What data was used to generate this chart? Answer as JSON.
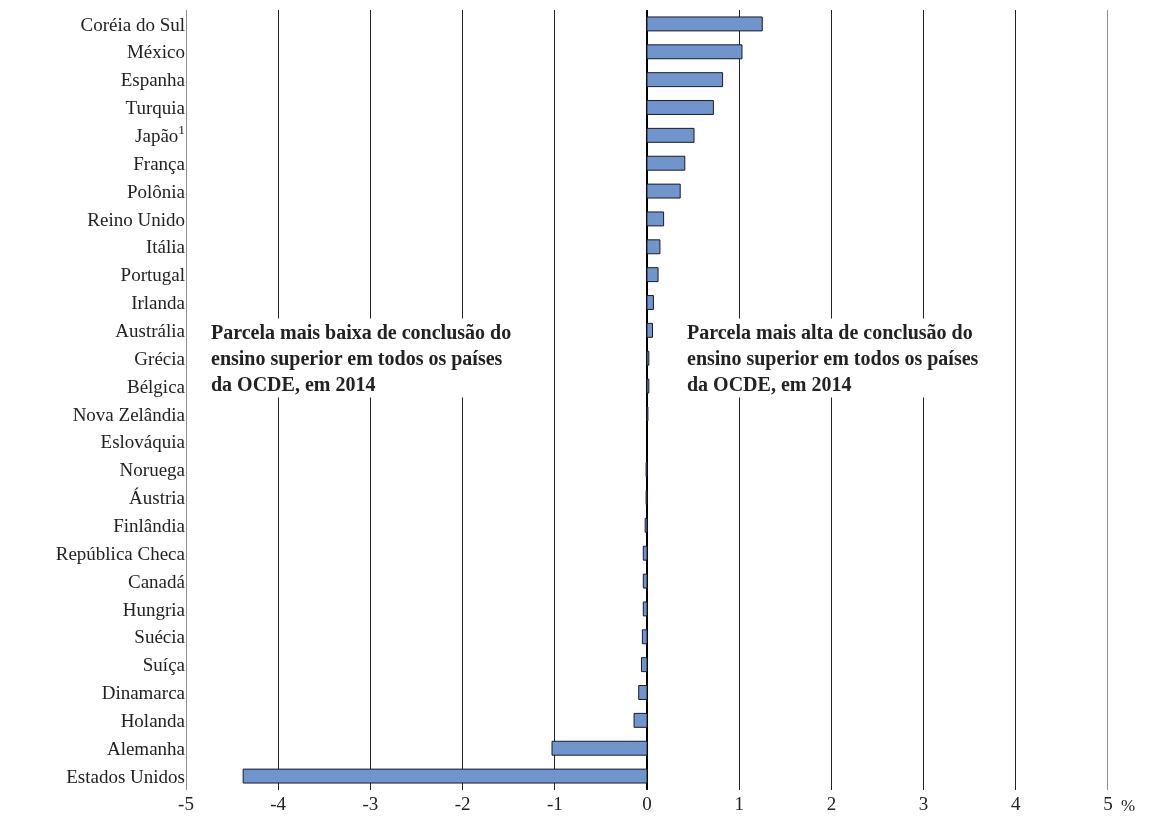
{
  "chart_data": {
    "type": "bar",
    "orientation": "horizontal",
    "categories": [
      "Coréia do Sul",
      "México",
      "Espanha",
      "Turquia",
      "Japão$^{1}$",
      "França",
      "Polônia",
      "Reino Unido",
      "Itália",
      "Portugal",
      "Irlanda",
      "Austrália",
      "Grécia",
      "Bélgica",
      "Nova Zelândia",
      "Eslováquia",
      "Noruega",
      "Áustria",
      "Finlândia",
      "República Checa",
      "Canadá",
      "Hungria",
      "Suécia",
      "Suíça",
      "Dinamarca",
      "Holanda",
      "Alemanha",
      "Estados Unidos"
    ],
    "values": [
      1.25,
      1.03,
      0.82,
      0.72,
      0.51,
      0.41,
      0.36,
      0.18,
      0.14,
      0.12,
      0.07,
      0.06,
      0.02,
      0.02,
      0.01,
      0,
      -0.01,
      -0.01,
      -0.02,
      -0.04,
      -0.04,
      -0.04,
      -0.05,
      -0.06,
      -0.09,
      -0.14,
      -1.03,
      -4.38
    ],
    "color": "#7094cc",
    "xlabel": "%",
    "xlim": [
      -5,
      5
    ],
    "xticks": [
      -5,
      -4,
      -3,
      -2,
      -1,
      0,
      1,
      2,
      3,
      4,
      5
    ],
    "grid": "x",
    "legend": false,
    "annotations": [
      "Parcela mais baixa de conclusão do ensino superior em todos os países da OCDE, em 2014",
      "Parcela mais alta de conclusão do ensino superior em todos os países da OCDE, em 2014"
    ]
  }
}
